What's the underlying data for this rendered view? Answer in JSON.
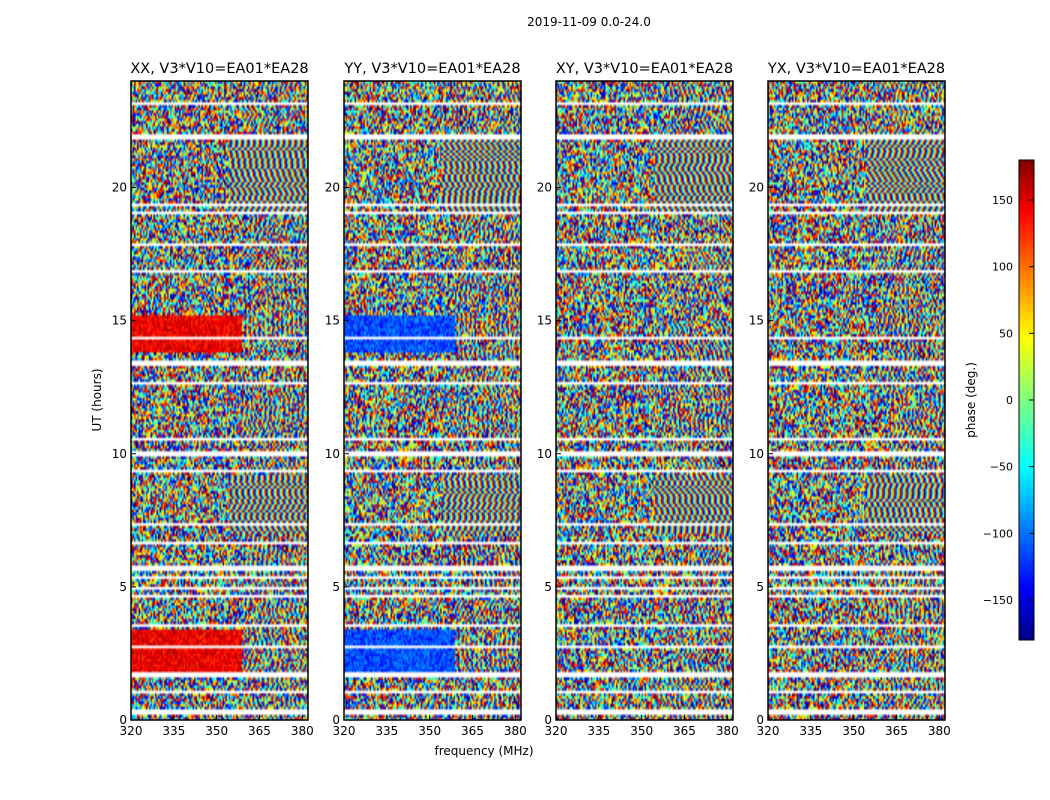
{
  "figure": {
    "suptitle": "2019-11-09 0.0-24.0",
    "xlabel": "frequency (MHz)",
    "ylabel": "UT (hours)"
  },
  "chart_data": {
    "type": "heatmap",
    "xlim": [
      320,
      382
    ],
    "ylim": [
      0,
      24
    ],
    "x_ticks": [
      320,
      335,
      350,
      365,
      380
    ],
    "y_ticks": [
      0,
      5,
      10,
      15,
      20
    ],
    "panels": [
      {
        "title": "XX, V3*V10=EA01*EA28",
        "warm_bias": "red",
        "x_ticks": [
          "320",
          "335",
          "350",
          "365",
          "380"
        ],
        "y_ticks": [
          "0",
          "5",
          "10",
          "15",
          "20"
        ]
      },
      {
        "title": "YY, V3*V10=EA01*EA28",
        "warm_bias": "blue",
        "x_ticks": [
          "320",
          "335",
          "350",
          "365",
          "380"
        ],
        "y_ticks": [
          "0",
          "5",
          "10",
          "15",
          "20"
        ]
      },
      {
        "title": "XY, V3*V10=EA01*EA28",
        "warm_bias": "none",
        "x_ticks": [
          "320",
          "335",
          "350",
          "365",
          "380"
        ],
        "y_ticks": [
          "0",
          "5",
          "10",
          "15",
          "20"
        ]
      },
      {
        "title": "YX, V3*V10=EA01*EA28",
        "warm_bias": "none",
        "x_ticks": [
          "320",
          "335",
          "350",
          "365",
          "380"
        ],
        "y_ticks": [
          "0",
          "5",
          "10",
          "15",
          "20"
        ]
      }
    ],
    "flag_bands_hours": [
      [
        0.2,
        0.35
      ],
      [
        0.95,
        1.05
      ],
      [
        1.6,
        1.75
      ],
      [
        2.65,
        2.75
      ],
      [
        3.45,
        3.55
      ],
      [
        4.55,
        4.65
      ],
      [
        4.9,
        5.0
      ],
      [
        5.25,
        5.4
      ],
      [
        5.55,
        5.75
      ],
      [
        6.55,
        6.65
      ],
      [
        7.3,
        7.4
      ],
      [
        9.3,
        9.4
      ],
      [
        9.9,
        10.1
      ],
      [
        10.5,
        10.6
      ],
      [
        12.6,
        12.75
      ],
      [
        13.35,
        13.5
      ],
      [
        14.35,
        14.45
      ],
      [
        16.85,
        16.95
      ],
      [
        17.8,
        17.9
      ],
      [
        19.0,
        19.15
      ],
      [
        19.35,
        19.45
      ],
      [
        21.85,
        22.0
      ],
      [
        23.1,
        23.2
      ]
    ],
    "colorbar": {
      "label": "phase (deg.)",
      "min": -180,
      "max": 180,
      "ticks": [
        150,
        100,
        50,
        0,
        -50,
        -100,
        -150
      ],
      "tick_labels": [
        "150",
        "100",
        "50",
        "0",
        "−50",
        "−100",
        "−150"
      ],
      "colormap": "jet"
    }
  }
}
